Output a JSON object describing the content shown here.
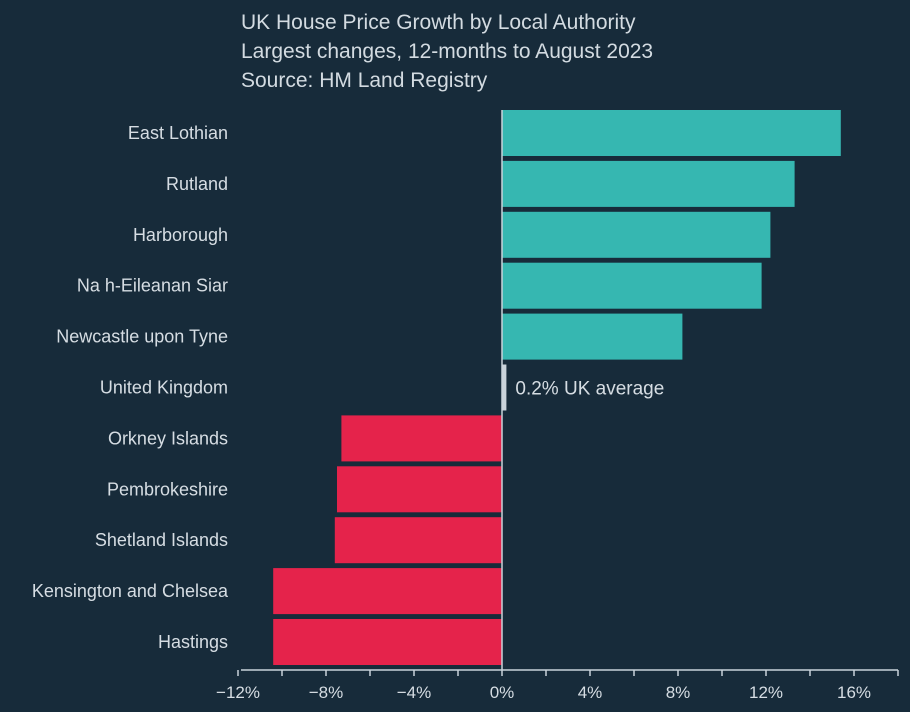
{
  "header": {
    "title": "UK House Price Growth by Local Authority",
    "subtitle": "Largest changes, 12-months to August 2023",
    "source": "Source: HM Land Registry"
  },
  "colors": {
    "background": "#172b3a",
    "positive": "#36b7b1",
    "negative": "#e5234b",
    "average": "#c9d3da",
    "axis": "#c9d3da",
    "text": "#d6dde3"
  },
  "chart_data": {
    "type": "bar",
    "orientation": "horizontal",
    "title": "UK House Price Growth by Local Authority",
    "subtitle": "Largest changes, 12-months to August 2023",
    "source": "Source: HM Land Registry",
    "categories": [
      "East Lothian",
      "Rutland",
      "Harborough",
      "Na h-Eileanan Siar",
      "Newcastle upon Tyne",
      "United Kingdom",
      "Orkney Islands",
      "Pembrokeshire",
      "Shetland Islands",
      "Kensington and Chelsea",
      "Hastings"
    ],
    "values": [
      15.4,
      13.3,
      12.2,
      11.8,
      8.2,
      0.2,
      -7.3,
      -7.5,
      -7.6,
      -10.4,
      -10.4
    ],
    "xlim": [
      -12,
      18
    ],
    "xticks": [
      -12,
      -8,
      -4,
      0,
      4,
      8,
      12,
      16
    ],
    "xtick_labels": [
      "−12%",
      "−8%",
      "−4%",
      "0%",
      "4%",
      "8%",
      "12%",
      "16%"
    ],
    "annotation": {
      "category": "United Kingdom",
      "text": "0.2% UK average"
    },
    "xlabel": "",
    "ylabel": "",
    "grid": false,
    "legend": "none"
  }
}
